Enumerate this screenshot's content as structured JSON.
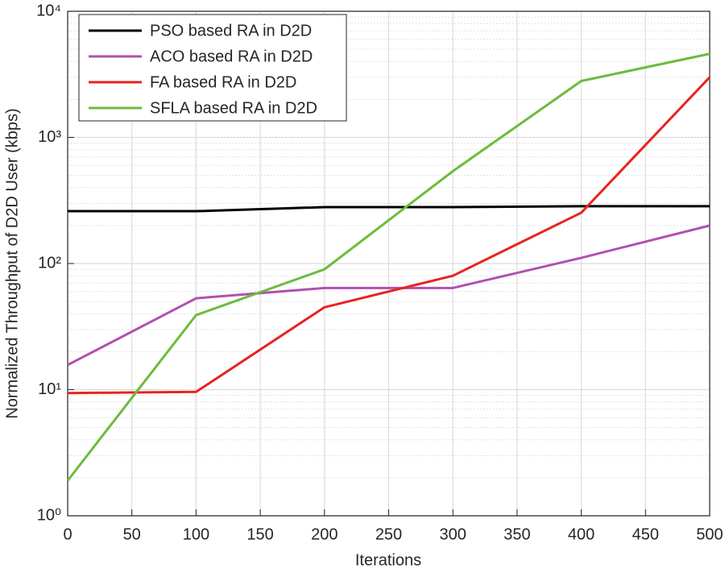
{
  "chart_data": {
    "type": "line",
    "xlabel": "Iterations",
    "ylabel": "Normalized Throughput of D2D User (kbps)",
    "x": [
      0,
      100,
      200,
      300,
      400,
      500
    ],
    "series": [
      {
        "name": "PSO based RA in D2D",
        "color": "#000000",
        "values": [
          260,
          260,
          280,
          280,
          285,
          285
        ]
      },
      {
        "name": "ACO based RA in D2D",
        "color": "#b050b0",
        "values": [
          15.7,
          53,
          64,
          64,
          111,
          200
        ]
      },
      {
        "name": "FA based RA in D2D",
        "color": "#e8231f",
        "values": [
          9.4,
          9.6,
          45,
          80,
          253,
          3000
        ]
      },
      {
        "name": "SFLA based RA in D2D",
        "color": "#6cbb3c",
        "values": [
          1.9,
          39,
          90,
          540,
          2800,
          4600
        ]
      }
    ],
    "xlim": [
      0,
      500
    ],
    "xticks": [
      0,
      50,
      100,
      150,
      200,
      250,
      300,
      350,
      400,
      450,
      500
    ],
    "ylim": [
      1,
      10000
    ],
    "yticks": [
      {
        "value": 1,
        "label": "10⁰"
      },
      {
        "value": 10,
        "label": "10¹"
      },
      {
        "value": 100,
        "label": "10²"
      },
      {
        "value": 1000,
        "label": "10³"
      },
      {
        "value": 10000,
        "label": "10⁴"
      }
    ],
    "yscale": "log",
    "grid": true,
    "minor_grid": true,
    "legend": "upper-left"
  }
}
